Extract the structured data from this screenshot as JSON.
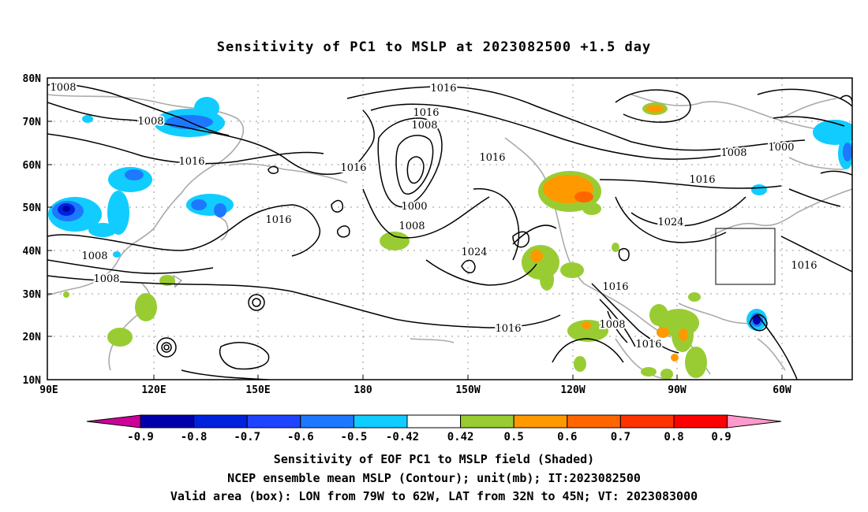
{
  "title": "Sensitivity of PC1 to MSLP at 2023082500 +1.5 day",
  "lat_labels": [
    "80N",
    "70N",
    "60N",
    "50N",
    "40N",
    "30N",
    "20N",
    "10N"
  ],
  "lon_labels": [
    "90E",
    "120E",
    "150E",
    "180",
    "150W",
    "120W",
    "90W",
    "60W"
  ],
  "contour_labels": [
    {
      "text": "1008",
      "id": "c1"
    },
    {
      "text": "1016",
      "id": "c2"
    },
    {
      "text": "1016",
      "id": "c3"
    },
    {
      "text": "1008",
      "id": "c4"
    },
    {
      "text": "1008",
      "id": "c5"
    },
    {
      "text": "1016",
      "id": "c6"
    },
    {
      "text": "1016",
      "id": "c7"
    },
    {
      "text": "1016",
      "id": "c8"
    },
    {
      "text": "1000",
      "id": "c9"
    },
    {
      "text": "1008",
      "id": "c10"
    },
    {
      "text": "1016",
      "id": "c11"
    },
    {
      "text": "1024",
      "id": "c12"
    },
    {
      "text": "1008",
      "id": "c13"
    },
    {
      "text": "1008",
      "id": "c14"
    },
    {
      "text": "1016",
      "id": "c15"
    },
    {
      "text": "1016",
      "id": "c16"
    },
    {
      "text": "1008",
      "id": "c17"
    },
    {
      "text": "1016",
      "id": "c18"
    },
    {
      "text": "1008",
      "id": "c19"
    },
    {
      "text": "1000",
      "id": "c20"
    },
    {
      "text": "1016",
      "id": "c21"
    },
    {
      "text": "1024",
      "id": "c22"
    },
    {
      "text": "1016",
      "id": "c23"
    }
  ],
  "colorbar": {
    "labels": [
      "-0.9",
      "-0.8",
      "-0.7",
      "-0.6",
      "-0.5",
      "-0.42",
      "0.42",
      "0.5",
      "0.6",
      "0.7",
      "0.8",
      "0.9"
    ],
    "colors": [
      "#0000aa",
      "#0022dd",
      "#1f44ff",
      "#1e78ff",
      "#33aaff",
      "#11ccff",
      "#ffffff",
      "#99cc33",
      "#ff9900",
      "#ff6600",
      "#ff3300",
      "#ff0000"
    ],
    "low_end_color": "#cc0099",
    "high_end_color": "#ff99cc"
  },
  "captions": {
    "line1": "Sensitivity of EOF PC1 to MSLP field (Shaded)",
    "line2": "NCEP ensemble mean MSLP (Contour); unit(mb); IT:2023082500",
    "line3": "Valid area (box): LON from 79W to 62W, LAT from 32N to 45N; VT: 2023083000"
  }
}
